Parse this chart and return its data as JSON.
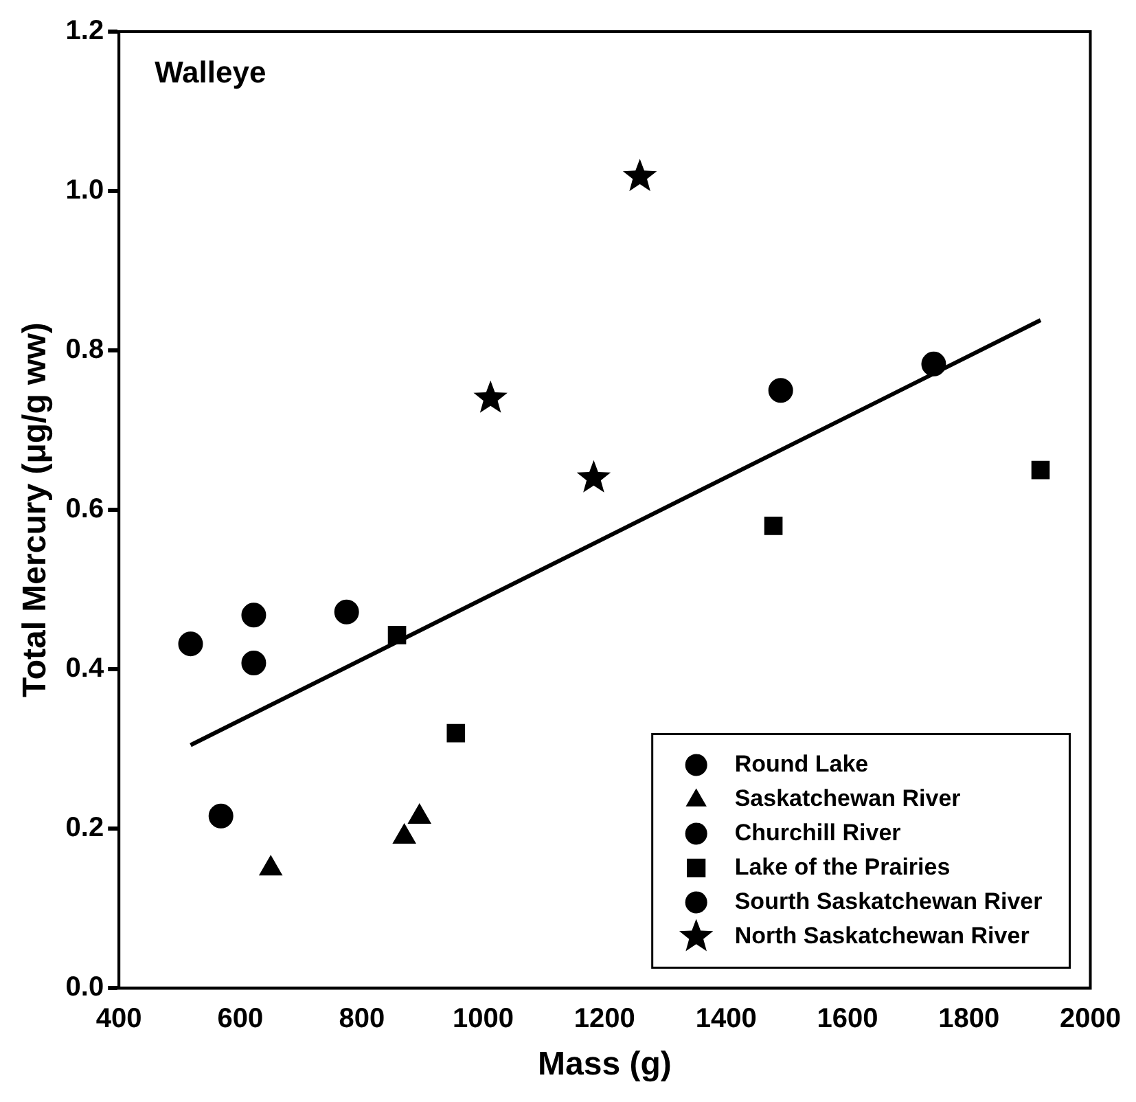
{
  "chart_data": {
    "type": "scatter",
    "title": "Walleye",
    "xlabel": "Mass (g)",
    "ylabel": "Total Mercury (μg/g ww)",
    "xlim": [
      400,
      2000
    ],
    "xticks": [
      400,
      600,
      800,
      1000,
      1200,
      1400,
      1600,
      1800,
      2000
    ],
    "ylim": [
      0,
      1.2
    ],
    "yticks": [
      {
        "value": 0,
        "label": "0.0"
      },
      {
        "value": 0.2,
        "label": "0.2"
      },
      {
        "value": 0.4,
        "label": "0.4"
      },
      {
        "value": 0.6,
        "label": "0.6"
      },
      {
        "value": 0.8,
        "label": "0.8"
      },
      {
        "value": 1,
        "label": "1.0"
      },
      {
        "value": 1.2,
        "label": "1.2"
      }
    ],
    "grid": false,
    "legend": "bottom right",
    "series": [
      {
        "name": "Round Lake",
        "color": "#000000",
        "marker": "circle",
        "x": [
          568
        ],
        "values": [
          0.216
        ]
      },
      {
        "name": "Saskatchewan River",
        "color": "#000000",
        "marker": "triangle",
        "x": [
          650,
          870,
          895
        ],
        "values": [
          0.15,
          0.19,
          0.215
        ]
      },
      {
        "name": "Churchill River",
        "color": "#000000",
        "marker": "circle",
        "x": [
          518,
          622,
          622,
          775
        ],
        "values": [
          0.432,
          0.468,
          0.408,
          0.472
        ]
      },
      {
        "name": "Lake of the Prairies",
        "color": "#000000",
        "marker": "square",
        "x": [
          858,
          955,
          1478,
          1918
        ],
        "values": [
          0.443,
          0.32,
          0.58,
          0.65
        ]
      },
      {
        "name": "Sourth Saskatchewan River",
        "color": "#000000",
        "marker": "circle",
        "x": [
          1490,
          1742
        ],
        "values": [
          0.75,
          0.783
        ]
      },
      {
        "name": "North Saskatchewan River",
        "color": "#000000",
        "marker": "star",
        "x": [
          1012,
          1182,
          1258
        ],
        "values": [
          0.74,
          0.64,
          1.018
        ]
      },
      {
        "type": "line",
        "color": "#000000",
        "marker": "none",
        "line_style": "solid",
        "x": [
          518,
          1918
        ],
        "values": [
          0.305,
          0.838
        ]
      }
    ]
  }
}
